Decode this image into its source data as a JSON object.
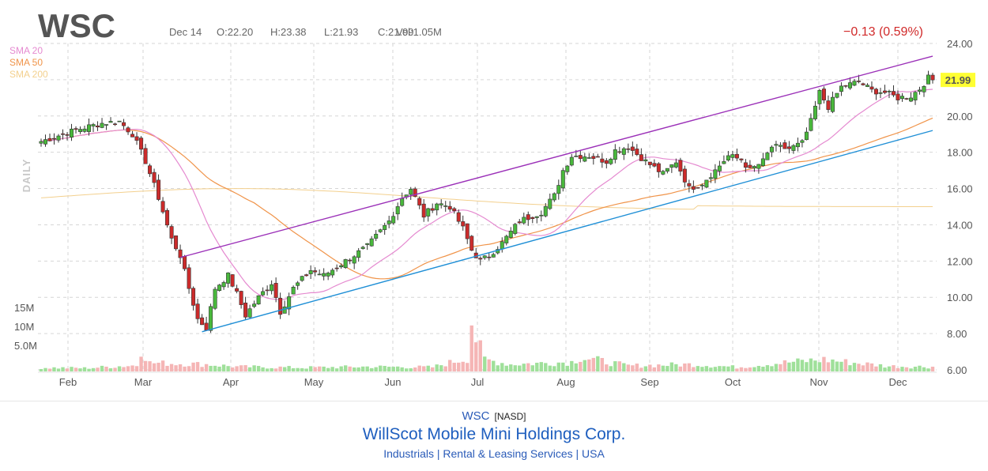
{
  "header": {
    "ticker": "WSC",
    "date": "Dec 14",
    "open": "O:22.20",
    "high": "H:23.38",
    "low": "L:21.93",
    "close": "C:21.99",
    "volume": "Vol:1.05M",
    "change": "−0.13 (0.59%)",
    "timeframe": "DAILY"
  },
  "legend": [
    {
      "label": "SMA 20",
      "color": "#e58ad0"
    },
    {
      "label": "SMA 50",
      "color": "#f0944a"
    },
    {
      "label": "SMA 200",
      "color": "#f3d08e"
    }
  ],
  "footer": {
    "symbol": "WSC",
    "exchange": "[NASD]",
    "company": "WillScot Mobile Mini Holdings Corp.",
    "sector_line": "Industrials | Rental & Leasing Services | USA"
  },
  "chart_data": {
    "type": "candlestick",
    "y_ticks": [
      "24.00",
      "22.00",
      "20.00",
      "18.00",
      "16.00",
      "14.00",
      "12.00",
      "10.00",
      "8.00",
      "6.00"
    ],
    "y_range": [
      6,
      24
    ],
    "x_ticks": [
      "Feb",
      "Mar",
      "Apr",
      "May",
      "Jun",
      "Jul",
      "Aug",
      "Sep",
      "Oct",
      "Nov",
      "Dec"
    ],
    "volume_ticks": [
      "15M",
      "10M",
      "5.0M"
    ],
    "last_price": "21.99",
    "last_price_value": 21.99,
    "price_path": [
      [
        0,
        18.6
      ],
      [
        5,
        19.0
      ],
      [
        9,
        19.3
      ],
      [
        14,
        19.6
      ],
      [
        18,
        19.7
      ],
      [
        21,
        19.0
      ],
      [
        24,
        17.5
      ],
      [
        27,
        15.5
      ],
      [
        30,
        13.2
      ],
      [
        32,
        12.3
      ],
      [
        34,
        10.5
      ],
      [
        36,
        8.8
      ],
      [
        38,
        8.3
      ],
      [
        40,
        10.5
      ],
      [
        43,
        11.2
      ],
      [
        45,
        10.2
      ],
      [
        47,
        9.0
      ],
      [
        50,
        10.0
      ],
      [
        53,
        10.8
      ],
      [
        55,
        9.2
      ],
      [
        58,
        10.5
      ],
      [
        62,
        11.5
      ],
      [
        65,
        11.2
      ],
      [
        70,
        12.0
      ],
      [
        75,
        12.8
      ],
      [
        80,
        14.2
      ],
      [
        83,
        15.5
      ],
      [
        85,
        16.0
      ],
      [
        88,
        14.5
      ],
      [
        91,
        15.2
      ],
      [
        94,
        15.0
      ],
      [
        97,
        13.8
      ],
      [
        99,
        12.6
      ],
      [
        101,
        12.0
      ],
      [
        103,
        12.3
      ],
      [
        106,
        13.0
      ],
      [
        110,
        14.2
      ],
      [
        115,
        14.7
      ],
      [
        118,
        15.6
      ],
      [
        120,
        17.0
      ],
      [
        122,
        17.8
      ],
      [
        126,
        17.8
      ],
      [
        130,
        17.5
      ],
      [
        132,
        18.1
      ],
      [
        135,
        18.3
      ],
      [
        139,
        17.5
      ],
      [
        143,
        16.8
      ],
      [
        146,
        17.5
      ],
      [
        149,
        16.0
      ],
      [
        152,
        16.3
      ],
      [
        155,
        17.0
      ],
      [
        158,
        17.8
      ],
      [
        161,
        17.6
      ],
      [
        163,
        17.0
      ],
      [
        166,
        17.5
      ],
      [
        168,
        18.3
      ],
      [
        172,
        18.2
      ],
      [
        175,
        18.5
      ],
      [
        177,
        19.7
      ],
      [
        179,
        21.3
      ],
      [
        181,
        20.5
      ],
      [
        184,
        21.6
      ],
      [
        188,
        21.9
      ],
      [
        191,
        21.4
      ],
      [
        194,
        21.3
      ],
      [
        197,
        21.0
      ],
      [
        200,
        21.1
      ],
      [
        202,
        21.5
      ],
      [
        204,
        22.1
      ],
      [
        205,
        21.99
      ]
    ],
    "volume_path": [
      [
        0,
        0.8
      ],
      [
        10,
        0.7
      ],
      [
        22,
        1.3
      ],
      [
        23,
        5.0
      ],
      [
        25,
        1.8
      ],
      [
        30,
        1.7
      ],
      [
        38,
        1.5
      ],
      [
        45,
        1.0
      ],
      [
        60,
        0.8
      ],
      [
        75,
        1.0
      ],
      [
        90,
        0.9
      ],
      [
        98,
        2.8
      ],
      [
        99,
        11.0
      ],
      [
        100,
        7.0
      ],
      [
        102,
        2.5
      ],
      [
        108,
        1.5
      ],
      [
        122,
        2.0
      ],
      [
        124,
        3.0
      ],
      [
        135,
        1.2
      ],
      [
        150,
        1.5
      ],
      [
        160,
        0.9
      ],
      [
        170,
        1.8
      ],
      [
        180,
        2.5
      ],
      [
        185,
        2.0
      ],
      [
        195,
        1.1
      ],
      [
        205,
        1.0
      ]
    ],
    "total_bars": 206,
    "upper_trendline": [
      [
        32,
        12.2
      ],
      [
        205,
        23.3
      ]
    ],
    "lower_trendline": [
      [
        37,
        8.1
      ],
      [
        205,
        19.2
      ]
    ],
    "colors": {
      "up": "#49b83c",
      "down": "#cc2b2b",
      "up_volume": "#9fe09a",
      "down_volume": "#f5b5b5",
      "upper_trendline": "#9b30b8",
      "lower_trendline": "#1f8fd6",
      "last_price_bg": "#ffff33"
    }
  }
}
